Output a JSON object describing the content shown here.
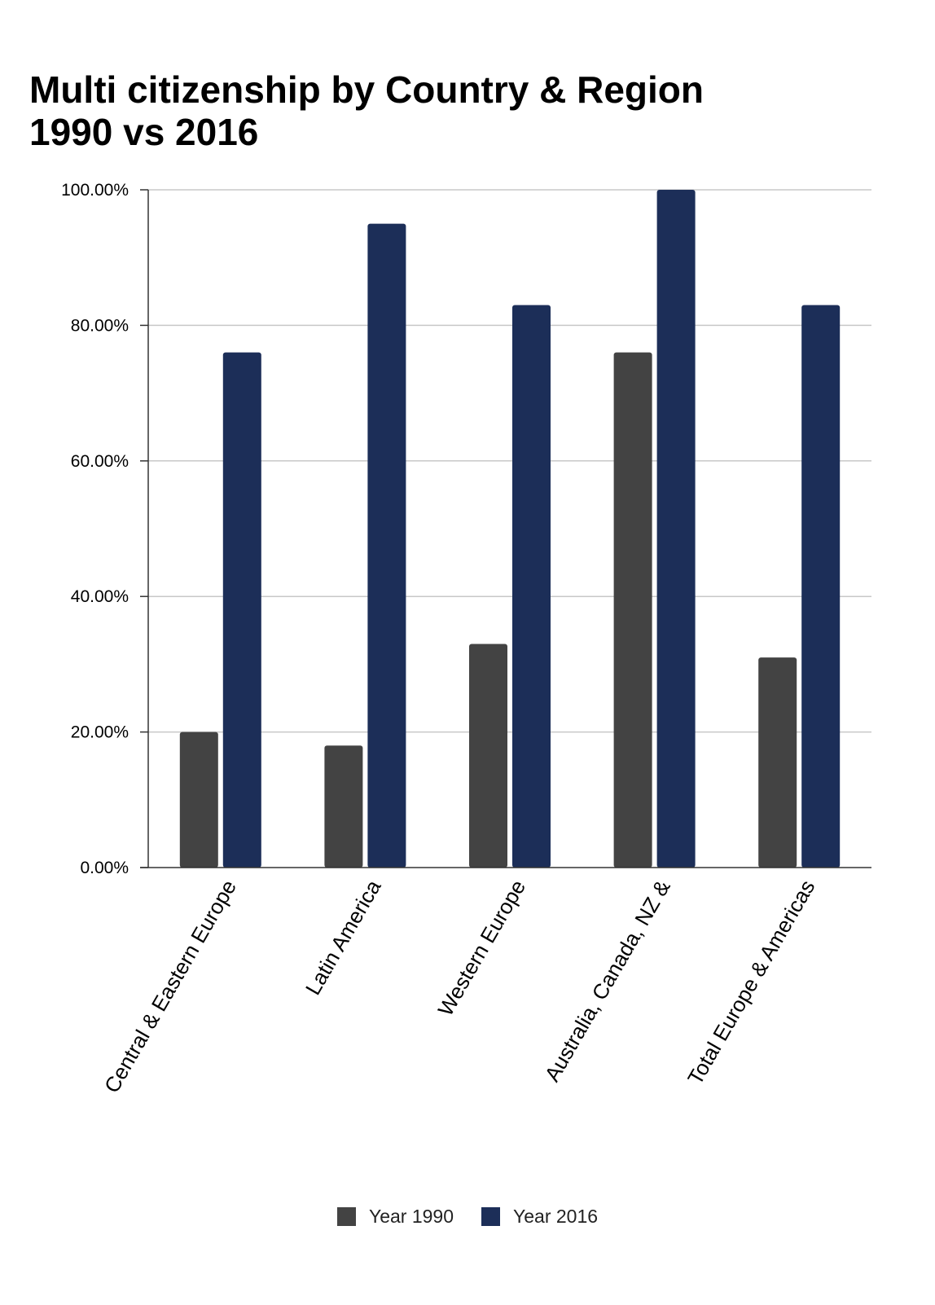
{
  "chart_data": {
    "type": "bar",
    "title": [
      "Multi citizenship by Country & Region",
      "1990 vs 2016"
    ],
    "categories": [
      "Central & Eastern Europe",
      "Latin America",
      "Western Europe",
      "Australia, Canada, NZ &",
      "Total Europe & Americas"
    ],
    "series": [
      {
        "name": "Year 1990",
        "color": "#434343",
        "values": [
          20,
          18,
          33,
          76,
          31
        ]
      },
      {
        "name": "Year 2016",
        "color": "#1c2e58",
        "values": [
          76,
          95,
          83,
          100,
          83
        ]
      }
    ],
    "ylim": [
      0,
      100
    ],
    "yticks": [
      0,
      20,
      40,
      60,
      80,
      100
    ],
    "ytick_labels": [
      "0.00%",
      "20.00%",
      "40.00%",
      "60.00%",
      "80.00%",
      "100.00%"
    ],
    "grid": true,
    "legend": "bottom"
  }
}
